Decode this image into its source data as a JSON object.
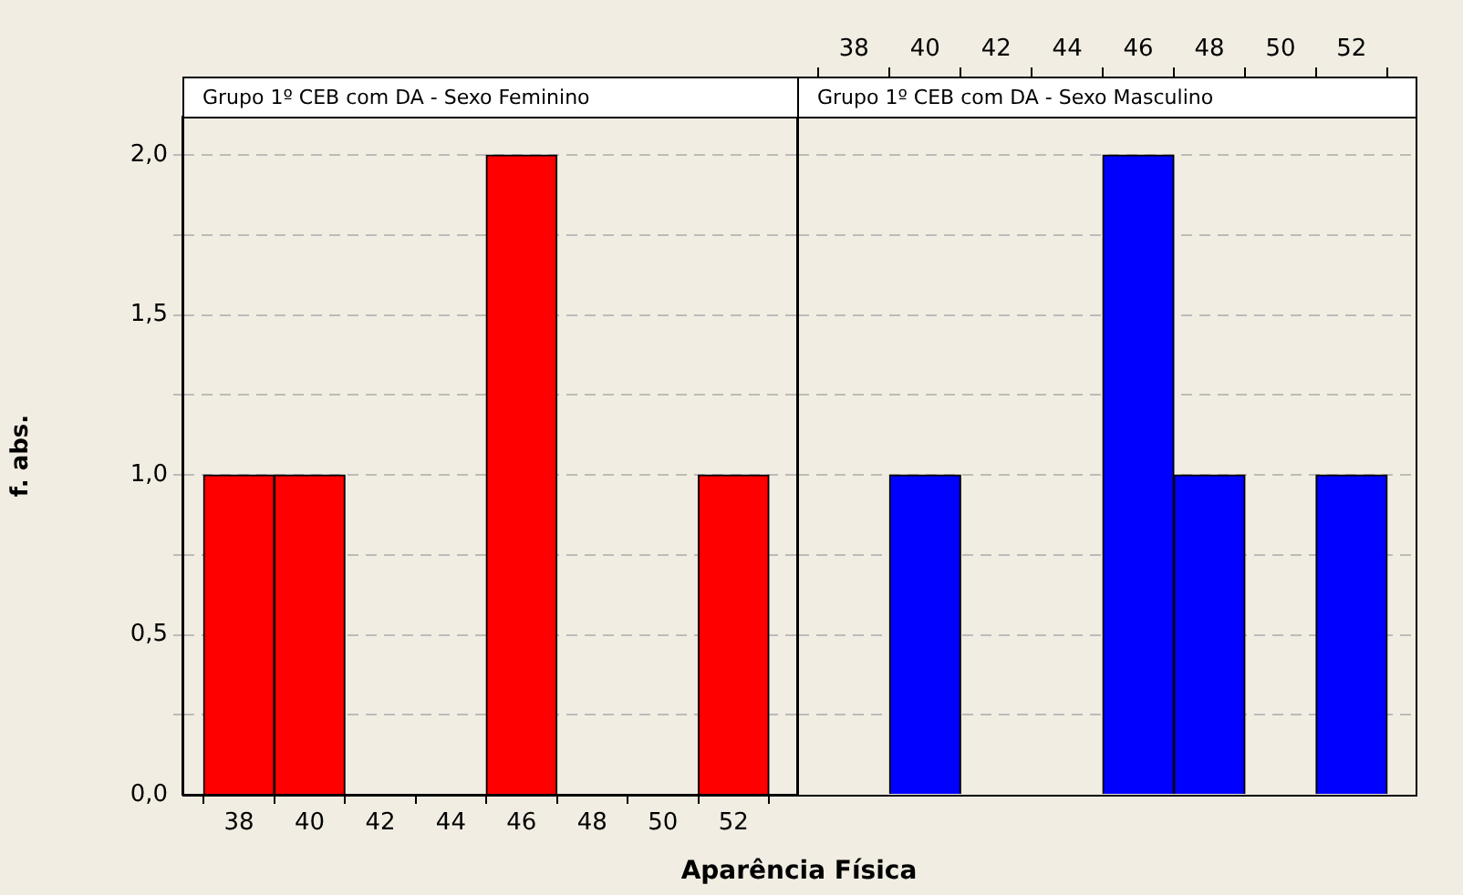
{
  "chart_data": [
    {
      "type": "histogram",
      "title": "Grupo 1º CEB com DA - Sexo Feminino",
      "xlabel": "Aparência Física",
      "ylabel": "f. abs.",
      "bins": [
        37,
        39,
        41,
        43,
        45,
        47,
        49,
        51,
        53
      ],
      "values": [
        1,
        1,
        0,
        0,
        2,
        0,
        0,
        1
      ],
      "color": "#ff0000",
      "xlim": [
        36.4,
        53.8
      ],
      "xticks": [
        38,
        40,
        42,
        44,
        46,
        48,
        50,
        52
      ],
      "ylim": [
        0,
        2.12
      ],
      "yticks": [
        {
          "value": 0,
          "label": "0,0"
        },
        {
          "value": 0.25,
          "label": null
        },
        {
          "value": 0.5,
          "label": "0,5"
        },
        {
          "value": 0.75,
          "label": null
        },
        {
          "value": 1,
          "label": "1,0"
        },
        {
          "value": 1.25,
          "label": null
        },
        {
          "value": 1.5,
          "label": "1,5"
        },
        {
          "value": 1.75,
          "label": null
        },
        {
          "value": 2,
          "label": "2,0"
        }
      ],
      "grid": "y",
      "legend": false
    },
    {
      "type": "histogram",
      "title": "Grupo 1º CEB com DA - Sexo Masculino",
      "bins": [
        37,
        39,
        41,
        43,
        45,
        47,
        49,
        51,
        53
      ],
      "values": [
        0,
        1,
        0,
        0,
        2,
        1,
        0,
        1
      ],
      "color": "#0000ff",
      "xlim": [
        36.4,
        53.8
      ],
      "xticks": [
        38,
        40,
        42,
        44,
        46,
        48,
        50,
        52
      ],
      "ylim": [
        0,
        2.12
      ],
      "yticks": [
        {
          "value": 0,
          "label": null
        },
        {
          "value": 0.25,
          "label": null
        },
        {
          "value": 0.5,
          "label": null
        },
        {
          "value": 0.75,
          "label": null
        },
        {
          "value": 1,
          "label": null
        },
        {
          "value": 1.25,
          "label": null
        },
        {
          "value": 1.5,
          "label": null
        },
        {
          "value": 1.75,
          "label": null
        },
        {
          "value": 2,
          "label": null
        }
      ],
      "grid": "y",
      "tick_labels": "x",
      "legend": false
    }
  ]
}
